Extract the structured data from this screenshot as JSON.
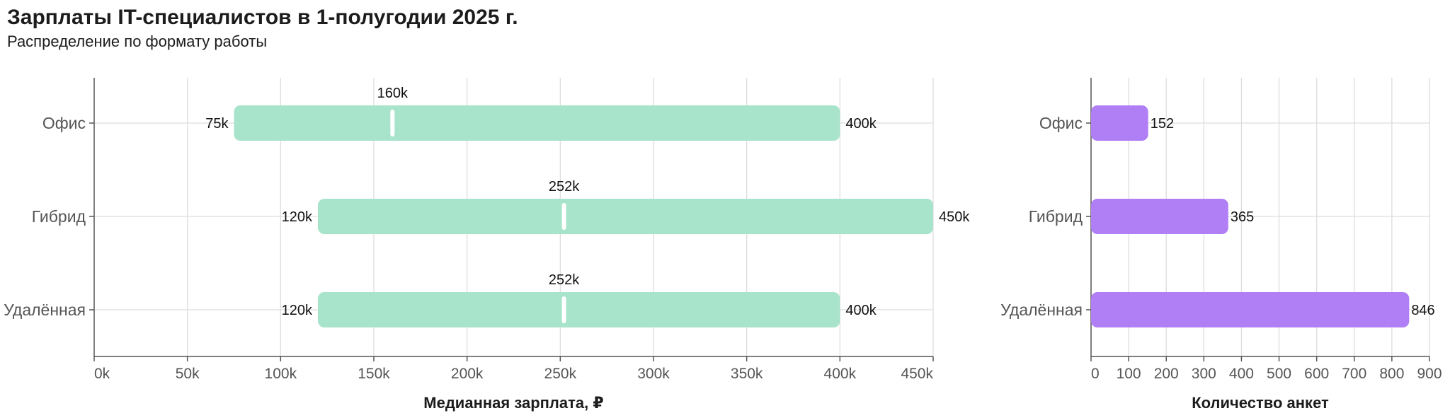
{
  "header": {
    "title": "Зарплаты IT-специалистов в 1-полугодии 2025 г.",
    "subtitle": "Распределение по формату работы"
  },
  "colors": {
    "range_bar": "#a8e4cb",
    "count_bar": "#b07ff5",
    "median_marker": "#ffffff",
    "grid": "#dddddd",
    "axis": "#555555"
  },
  "chart_data": [
    {
      "type": "bar",
      "subtype": "range",
      "categories": [
        "Офис",
        "Гибрид",
        "Удалённая"
      ],
      "series": [
        {
          "name": "min",
          "values": [
            75000,
            120000,
            120000
          ],
          "labels": [
            "75k",
            "120k",
            "120k"
          ]
        },
        {
          "name": "median",
          "values": [
            160000,
            252000,
            252000
          ],
          "labels": [
            "160k",
            "252k",
            "252k"
          ]
        },
        {
          "name": "max",
          "values": [
            400000,
            450000,
            400000
          ],
          "labels": [
            "400k",
            "450k",
            "400k"
          ]
        }
      ],
      "xlabel": "Медианная зарплата, ₽",
      "ylabel": "",
      "xlim": [
        0,
        450000
      ],
      "xticks": [
        0,
        50000,
        100000,
        150000,
        200000,
        250000,
        300000,
        350000,
        400000,
        450000
      ],
      "xtick_labels": [
        "0k",
        "50k",
        "100k",
        "150k",
        "200k",
        "250k",
        "300k",
        "350k",
        "400k",
        "450k"
      ],
      "grid": true,
      "legend": "none"
    },
    {
      "type": "bar",
      "categories": [
        "Офис",
        "Гибрид",
        "Удалённая"
      ],
      "values": [
        152,
        365,
        846
      ],
      "labels": [
        "152",
        "365",
        "846"
      ],
      "xlabel": "Количество анкет",
      "ylabel": "",
      "xlim": [
        0,
        900
      ],
      "xticks": [
        0,
        100,
        200,
        300,
        400,
        500,
        600,
        700,
        800,
        900
      ],
      "xtick_labels": [
        "0",
        "100",
        "200",
        "300",
        "400",
        "500",
        "600",
        "700",
        "800",
        "900"
      ],
      "grid": true,
      "legend": "none"
    }
  ]
}
